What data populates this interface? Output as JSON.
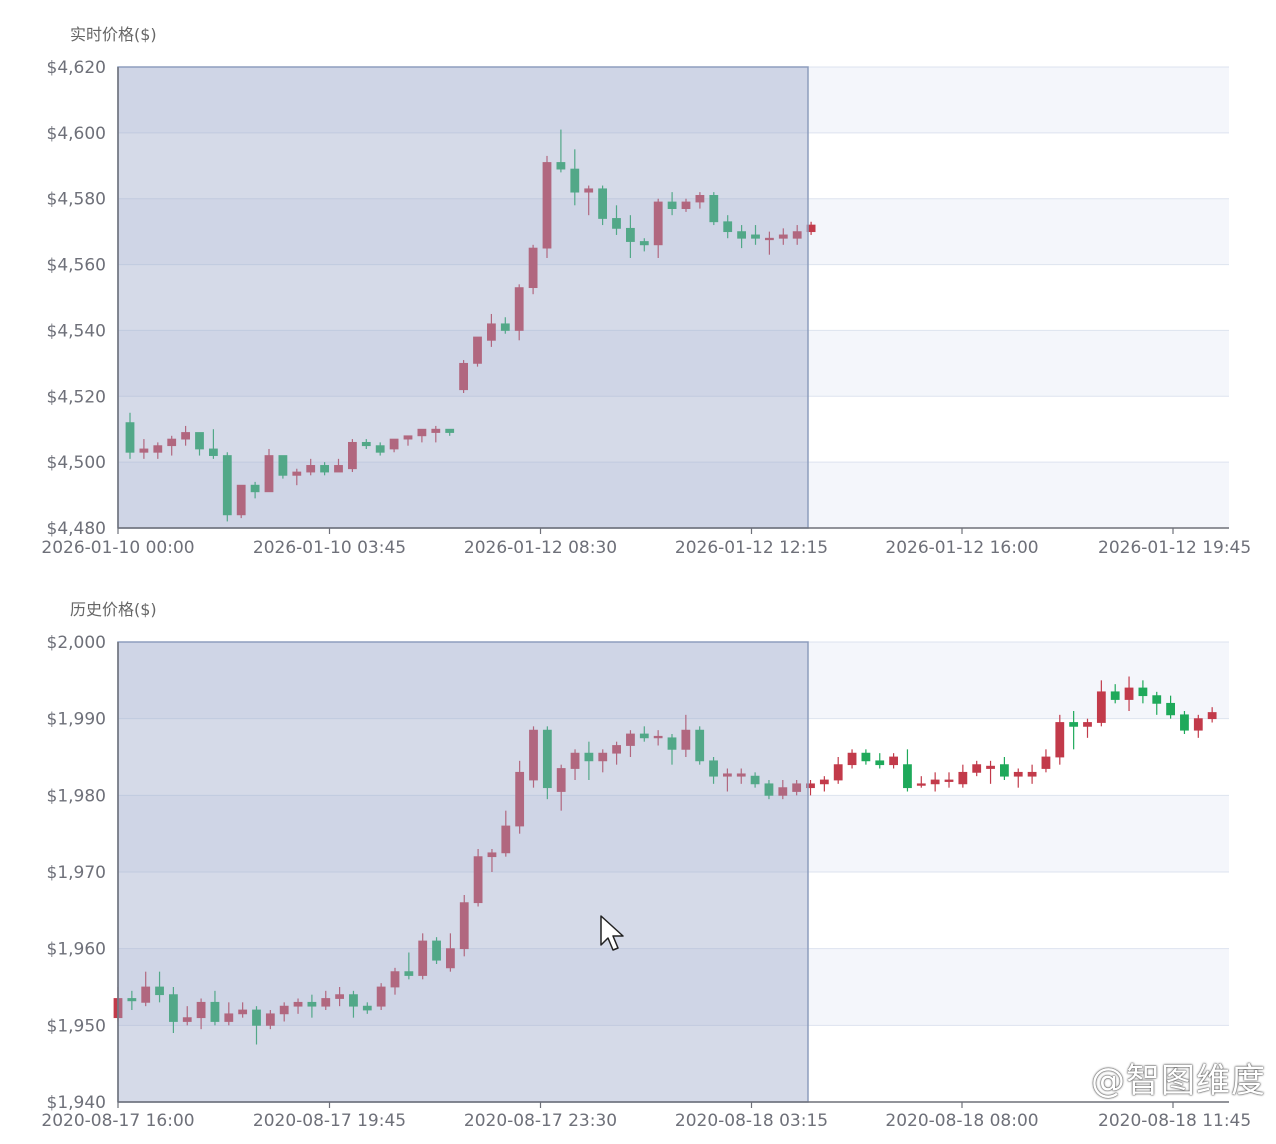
{
  "colors": {
    "up": "#c23a4a",
    "down": "#1ea95a",
    "selection": "#c8cfe0",
    "band": "#f4f6fb",
    "grid": "#dde3ef",
    "axis": "#6e7079"
  },
  "watermark": "@智图维度",
  "cursor_icon": "arrow-pointer",
  "chart_data": [
    {
      "type": "candlestick",
      "ylabel": "实时价格($)",
      "ylim": [
        4480,
        4620
      ],
      "yticks": [
        "$4,480",
        "$4,500",
        "$4,520",
        "$4,540",
        "$4,560",
        "$4,580",
        "$4,600",
        "$4,620"
      ],
      "xticks": [
        "2026-01-10 00:00",
        "2026-01-10 03:45",
        "2026-01-12 08:30",
        "2026-01-12 12:15",
        "2026-01-12 16:00",
        "2026-01-12 19:45"
      ],
      "selection_end_index": 52,
      "candles": [
        {
          "o": 4512,
          "c": 4503,
          "h": 4515,
          "l": 4501
        },
        {
          "o": 4503,
          "c": 4504,
          "h": 4507,
          "l": 4501
        },
        {
          "o": 4503,
          "c": 4505,
          "h": 4506,
          "l": 4501
        },
        {
          "o": 4505,
          "c": 4507,
          "h": 4508,
          "l": 4502
        },
        {
          "o": 4507,
          "c": 4509,
          "h": 4511,
          "l": 4505
        },
        {
          "o": 4509,
          "c": 4504,
          "h": 4509,
          "l": 4502
        },
        {
          "o": 4504,
          "c": 4502,
          "h": 4510,
          "l": 4501
        },
        {
          "o": 4502,
          "c": 4484,
          "h": 4503,
          "l": 4482
        },
        {
          "o": 4484,
          "c": 4493,
          "h": 4493,
          "l": 4483
        },
        {
          "o": 4493,
          "c": 4491,
          "h": 4494,
          "l": 4489
        },
        {
          "o": 4491,
          "c": 4502,
          "h": 4504,
          "l": 4491
        },
        {
          "o": 4502,
          "c": 4496,
          "h": 4502,
          "l": 4495
        },
        {
          "o": 4496,
          "c": 4497,
          "h": 4498,
          "l": 4493
        },
        {
          "o": 4497,
          "c": 4499,
          "h": 4501,
          "l": 4496
        },
        {
          "o": 4499,
          "c": 4497,
          "h": 4500,
          "l": 4496
        },
        {
          "o": 4497,
          "c": 4499,
          "h": 4501,
          "l": 4497
        },
        {
          "o": 4498,
          "c": 4506,
          "h": 4507,
          "l": 4497
        },
        {
          "o": 4506,
          "c": 4505,
          "h": 4507,
          "l": 4504
        },
        {
          "o": 4505,
          "c": 4503,
          "h": 4506,
          "l": 4502
        },
        {
          "o": 4504,
          "c": 4507,
          "h": 4507,
          "l": 4503
        },
        {
          "o": 4507,
          "c": 4508,
          "h": 4508,
          "l": 4505
        },
        {
          "o": 4508,
          "c": 4510,
          "h": 4510,
          "l": 4506
        },
        {
          "o": 4509,
          "c": 4510,
          "h": 4511,
          "l": 4506
        },
        {
          "o": 4510,
          "c": 4509,
          "h": 4510,
          "l": 4508
        },
        {
          "o": 4522,
          "c": 4530,
          "h": 4531,
          "l": 4521
        },
        {
          "o": 4530,
          "c": 4538,
          "h": 4538,
          "l": 4529
        },
        {
          "o": 4537,
          "c": 4542,
          "h": 4545,
          "l": 4535
        },
        {
          "o": 4542,
          "c": 4540,
          "h": 4544,
          "l": 4539
        },
        {
          "o": 4540,
          "c": 4553,
          "h": 4554,
          "l": 4537
        },
        {
          "o": 4553,
          "c": 4565,
          "h": 4566,
          "l": 4551
        },
        {
          "o": 4565,
          "c": 4591,
          "h": 4593,
          "l": 4562
        },
        {
          "o": 4591,
          "c": 4589,
          "h": 4601,
          "l": 4588
        },
        {
          "o": 4589,
          "c": 4582,
          "h": 4595,
          "l": 4578
        },
        {
          "o": 4582,
          "c": 4583,
          "h": 4584,
          "l": 4575
        },
        {
          "o": 4583,
          "c": 4574,
          "h": 4584,
          "l": 4572
        },
        {
          "o": 4574,
          "c": 4571,
          "h": 4578,
          "l": 4569
        },
        {
          "o": 4571,
          "c": 4567,
          "h": 4575,
          "l": 4562
        },
        {
          "o": 4567,
          "c": 4566,
          "h": 4568,
          "l": 4564
        },
        {
          "o": 4566,
          "c": 4579,
          "h": 4580,
          "l": 4562
        },
        {
          "o": 4579,
          "c": 4577,
          "h": 4582,
          "l": 4575
        },
        {
          "o": 4577,
          "c": 4579,
          "h": 4580,
          "l": 4576
        },
        {
          "o": 4579,
          "c": 4581,
          "h": 4582,
          "l": 4577
        },
        {
          "o": 4581,
          "c": 4573,
          "h": 4582,
          "l": 4572
        },
        {
          "o": 4573,
          "c": 4570,
          "h": 4575,
          "l": 4568
        },
        {
          "o": 4570,
          "c": 4568,
          "h": 4572,
          "l": 4565
        },
        {
          "o": 4569,
          "c": 4568,
          "h": 4572,
          "l": 4566
        },
        {
          "o": 4568,
          "c": 4568,
          "h": 4570,
          "l": 4563
        },
        {
          "o": 4568,
          "c": 4569,
          "h": 4571,
          "l": 4566
        },
        {
          "o": 4568,
          "c": 4570,
          "h": 4572,
          "l": 4566
        },
        {
          "o": 4570,
          "c": 4572,
          "h": 4573,
          "l": 4569
        }
      ]
    },
    {
      "type": "candlestick",
      "ylabel": "历史价格($)",
      "ylim": [
        1940,
        2000
      ],
      "yticks": [
        "$1,940",
        "$1,950",
        "$1,960",
        "$1,970",
        "$1,980",
        "$1,990",
        "$2,000"
      ],
      "xticks": [
        "2020-08-17 16:00",
        "2020-08-17 19:45",
        "2020-08-17 23:30",
        "2020-08-18 03:15",
        "2020-08-18 08:00",
        "2020-08-18 11:45"
      ],
      "selection_end_index": 52,
      "candles": [
        {
          "o": 1951,
          "c": 1953.5,
          "h": 1955,
          "l": 1950.5
        },
        {
          "o": 1953.5,
          "c": 1953.2,
          "h": 1954.5,
          "l": 1952
        },
        {
          "o": 1953,
          "c": 1955,
          "h": 1957,
          "l": 1952.5
        },
        {
          "o": 1955,
          "c": 1954,
          "h": 1957,
          "l": 1953
        },
        {
          "o": 1954,
          "c": 1950.5,
          "h": 1955,
          "l": 1949
        },
        {
          "o": 1950.5,
          "c": 1951,
          "h": 1952.5,
          "l": 1950
        },
        {
          "o": 1951,
          "c": 1953,
          "h": 1953.5,
          "l": 1949.5
        },
        {
          "o": 1953,
          "c": 1950.5,
          "h": 1954.5,
          "l": 1950
        },
        {
          "o": 1950.5,
          "c": 1951.5,
          "h": 1953,
          "l": 1950
        },
        {
          "o": 1951.5,
          "c": 1952,
          "h": 1953,
          "l": 1951
        },
        {
          "o": 1952,
          "c": 1950,
          "h": 1952.5,
          "l": 1947.5
        },
        {
          "o": 1950,
          "c": 1951.5,
          "h": 1952,
          "l": 1949.5
        },
        {
          "o": 1951.5,
          "c": 1952.5,
          "h": 1953,
          "l": 1950.5
        },
        {
          "o": 1952.5,
          "c": 1953,
          "h": 1953.5,
          "l": 1951.5
        },
        {
          "o": 1953,
          "c": 1952.5,
          "h": 1954,
          "l": 1951
        },
        {
          "o": 1952.5,
          "c": 1953.5,
          "h": 1954.5,
          "l": 1952
        },
        {
          "o": 1953.5,
          "c": 1954,
          "h": 1955,
          "l": 1952.5
        },
        {
          "o": 1954,
          "c": 1952.5,
          "h": 1954.5,
          "l": 1951
        },
        {
          "o": 1952.5,
          "c": 1952,
          "h": 1953,
          "l": 1951.5
        },
        {
          "o": 1952.5,
          "c": 1955,
          "h": 1955.5,
          "l": 1952
        },
        {
          "o": 1955,
          "c": 1957,
          "h": 1957.5,
          "l": 1954
        },
        {
          "o": 1957,
          "c": 1956.5,
          "h": 1959.5,
          "l": 1956
        },
        {
          "o": 1956.5,
          "c": 1961,
          "h": 1962,
          "l": 1956
        },
        {
          "o": 1961,
          "c": 1958.5,
          "h": 1961.5,
          "l": 1958
        },
        {
          "o": 1957.5,
          "c": 1960,
          "h": 1962,
          "l": 1957
        },
        {
          "o": 1960,
          "c": 1966,
          "h": 1967,
          "l": 1959
        },
        {
          "o": 1966,
          "c": 1972,
          "h": 1973,
          "l": 1965.5
        },
        {
          "o": 1972,
          "c": 1972.5,
          "h": 1973,
          "l": 1970
        },
        {
          "o": 1972.5,
          "c": 1976,
          "h": 1978,
          "l": 1972
        },
        {
          "o": 1976,
          "c": 1983,
          "h": 1984.5,
          "l": 1975
        },
        {
          "o": 1982,
          "c": 1988.5,
          "h": 1989,
          "l": 1981
        },
        {
          "o": 1988.5,
          "c": 1981,
          "h": 1989,
          "l": 1979.5
        },
        {
          "o": 1980.5,
          "c": 1983.5,
          "h": 1984,
          "l": 1978
        },
        {
          "o": 1983.5,
          "c": 1985.5,
          "h": 1986,
          "l": 1982
        },
        {
          "o": 1985.5,
          "c": 1984.5,
          "h": 1987,
          "l": 1982
        },
        {
          "o": 1984.5,
          "c": 1985.5,
          "h": 1986,
          "l": 1983
        },
        {
          "o": 1985.5,
          "c": 1986.5,
          "h": 1987,
          "l": 1984
        },
        {
          "o": 1986.5,
          "c": 1988,
          "h": 1988.5,
          "l": 1985
        },
        {
          "o": 1988,
          "c": 1987.5,
          "h": 1989,
          "l": 1987
        },
        {
          "o": 1987.5,
          "c": 1987.7,
          "h": 1988.5,
          "l": 1986.5
        },
        {
          "o": 1987.5,
          "c": 1986,
          "h": 1988,
          "l": 1984
        },
        {
          "o": 1986,
          "c": 1988.5,
          "h": 1990.5,
          "l": 1985
        },
        {
          "o": 1988.5,
          "c": 1984.5,
          "h": 1989,
          "l": 1984
        },
        {
          "o": 1984.5,
          "c": 1982.5,
          "h": 1985,
          "l": 1981.5
        },
        {
          "o": 1982.5,
          "c": 1982.8,
          "h": 1983.5,
          "l": 1980.5
        },
        {
          "o": 1982.5,
          "c": 1982.8,
          "h": 1983.5,
          "l": 1981.5
        },
        {
          "o": 1982.5,
          "c": 1981.5,
          "h": 1983,
          "l": 1981
        },
        {
          "o": 1981.5,
          "c": 1980,
          "h": 1982,
          "l": 1979.5
        },
        {
          "o": 1980,
          "c": 1981,
          "h": 1982,
          "l": 1979.5
        },
        {
          "o": 1980.5,
          "c": 1981.5,
          "h": 1982,
          "l": 1980
        },
        {
          "o": 1981,
          "c": 1981.5,
          "h": 1982,
          "l": 1980
        },
        {
          "o": 1981.5,
          "c": 1982,
          "h": 1982.5,
          "l": 1980.5
        },
        {
          "o": 1982,
          "c": 1984,
          "h": 1985,
          "l": 1981.5
        },
        {
          "o": 1984,
          "c": 1985.5,
          "h": 1986,
          "l": 1983.5
        },
        {
          "o": 1985.5,
          "c": 1984.5,
          "h": 1986,
          "l": 1984
        },
        {
          "o": 1984.5,
          "c": 1984,
          "h": 1985.5,
          "l": 1983.5
        },
        {
          "o": 1984,
          "c": 1985,
          "h": 1985.5,
          "l": 1983.5
        },
        {
          "o": 1984,
          "c": 1981,
          "h": 1986,
          "l": 1980.5
        },
        {
          "o": 1981.5,
          "c": 1981.5,
          "h": 1982.5,
          "l": 1981
        },
        {
          "o": 1981.5,
          "c": 1982,
          "h": 1983,
          "l": 1980.5
        },
        {
          "o": 1981.8,
          "c": 1982,
          "h": 1983,
          "l": 1981
        },
        {
          "o": 1981.5,
          "c": 1983,
          "h": 1984,
          "l": 1981
        },
        {
          "o": 1983,
          "c": 1984,
          "h": 1984.5,
          "l": 1982.5
        },
        {
          "o": 1983.5,
          "c": 1983.8,
          "h": 1984.5,
          "l": 1981.5
        },
        {
          "o": 1984,
          "c": 1982.5,
          "h": 1985,
          "l": 1982
        },
        {
          "o": 1982.5,
          "c": 1983,
          "h": 1983.5,
          "l": 1981
        },
        {
          "o": 1982.5,
          "c": 1983,
          "h": 1984,
          "l": 1981.5
        },
        {
          "o": 1983.5,
          "c": 1985,
          "h": 1986,
          "l": 1983
        },
        {
          "o": 1985,
          "c": 1989.5,
          "h": 1990.5,
          "l": 1984
        },
        {
          "o": 1989.5,
          "c": 1989,
          "h": 1991,
          "l": 1986
        },
        {
          "o": 1989,
          "c": 1989.5,
          "h": 1990,
          "l": 1987.5
        },
        {
          "o": 1989.5,
          "c": 1993.5,
          "h": 1995,
          "l": 1989
        },
        {
          "o": 1993.5,
          "c": 1992.5,
          "h": 1994.5,
          "l": 1992
        },
        {
          "o": 1992.5,
          "c": 1994,
          "h": 1995.5,
          "l": 1991
        },
        {
          "o": 1994,
          "c": 1993,
          "h": 1995,
          "l": 1992
        },
        {
          "o": 1993,
          "c": 1992,
          "h": 1993.5,
          "l": 1990.5
        },
        {
          "o": 1992,
          "c": 1990.5,
          "h": 1993,
          "l": 1990
        },
        {
          "o": 1990.5,
          "c": 1988.5,
          "h": 1991,
          "l": 1988
        },
        {
          "o": 1988.5,
          "c": 1990,
          "h": 1990.5,
          "l": 1987.5
        },
        {
          "o": 1990,
          "c": 1990.8,
          "h": 1991.5,
          "l": 1989.5
        }
      ]
    }
  ]
}
